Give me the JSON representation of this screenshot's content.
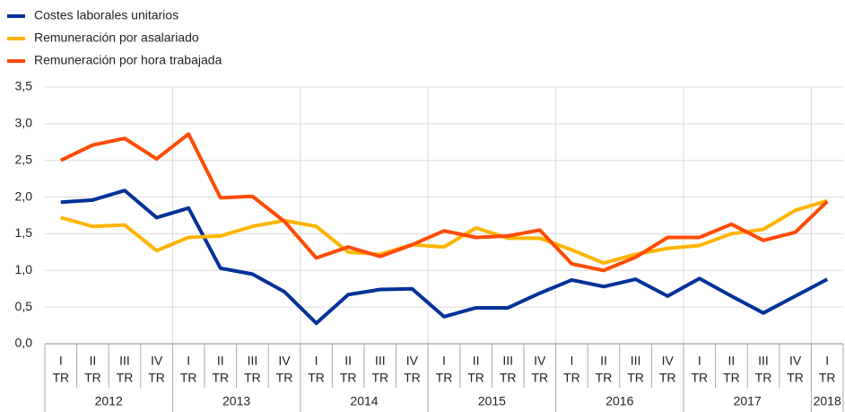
{
  "chart_data": {
    "type": "line",
    "categories": [
      "I",
      "II",
      "III",
      "IV",
      "I",
      "II",
      "III",
      "IV",
      "I",
      "II",
      "III",
      "IV",
      "I",
      "II",
      "III",
      "IV",
      "I",
      "II",
      "III",
      "IV",
      "I",
      "II",
      "III",
      "IV",
      "I"
    ],
    "category_sublabels": [
      "TR",
      "TR",
      "TR",
      "TR",
      "TR",
      "TR",
      "TR",
      "TR",
      "TR",
      "TR",
      "TR",
      "TR",
      "TR",
      "TR",
      "TR",
      "TR",
      "TR",
      "TR",
      "TR",
      "TR",
      "TR",
      "TR",
      "TR",
      "TR",
      "TR"
    ],
    "x_groups": [
      "2012",
      "2013",
      "2014",
      "2015",
      "2016",
      "2017",
      "2018"
    ],
    "series": [
      {
        "name": "Costes laborales unitarios",
        "color": "#003299",
        "values": [
          1.93,
          1.96,
          2.09,
          1.72,
          1.85,
          1.03,
          0.95,
          0.71,
          0.28,
          0.67,
          0.74,
          0.75,
          0.37,
          0.49,
          0.49,
          0.69,
          0.87,
          0.78,
          0.88,
          0.65,
          0.89,
          0.65,
          0.42,
          0.65,
          0.88
        ]
      },
      {
        "name": "Remuneración por asalariado",
        "color": "#ffb400",
        "values": [
          1.72,
          1.6,
          1.62,
          1.27,
          1.45,
          1.47,
          1.6,
          1.68,
          1.6,
          1.25,
          1.22,
          1.35,
          1.32,
          1.58,
          1.44,
          1.44,
          1.28,
          1.1,
          1.22,
          1.3,
          1.34,
          1.5,
          1.56,
          1.82,
          1.95
        ]
      },
      {
        "name": "Remuneración por hora trabajada",
        "color": "#ff4b00",
        "values": [
          2.5,
          2.71,
          2.8,
          2.52,
          2.86,
          1.99,
          2.01,
          1.67,
          1.17,
          1.32,
          1.19,
          1.35,
          1.54,
          1.45,
          1.47,
          1.55,
          1.09,
          1.0,
          1.18,
          1.45,
          1.45,
          1.63,
          1.41,
          1.52,
          1.94
        ]
      }
    ],
    "ylim": [
      0,
      3.5
    ],
    "yticks": [
      {
        "value": 0,
        "label": "0,0"
      },
      {
        "value": 0.5,
        "label": "0,5"
      },
      {
        "value": 1,
        "label": "1,0"
      },
      {
        "value": 1.5,
        "label": "1,5"
      },
      {
        "value": 2,
        "label": "2,0"
      },
      {
        "value": 2.5,
        "label": "2,5"
      },
      {
        "value": 3,
        "label": "3,0"
      },
      {
        "value": 3.5,
        "label": "3,5"
      }
    ],
    "grid": true,
    "legend": "top-left"
  }
}
